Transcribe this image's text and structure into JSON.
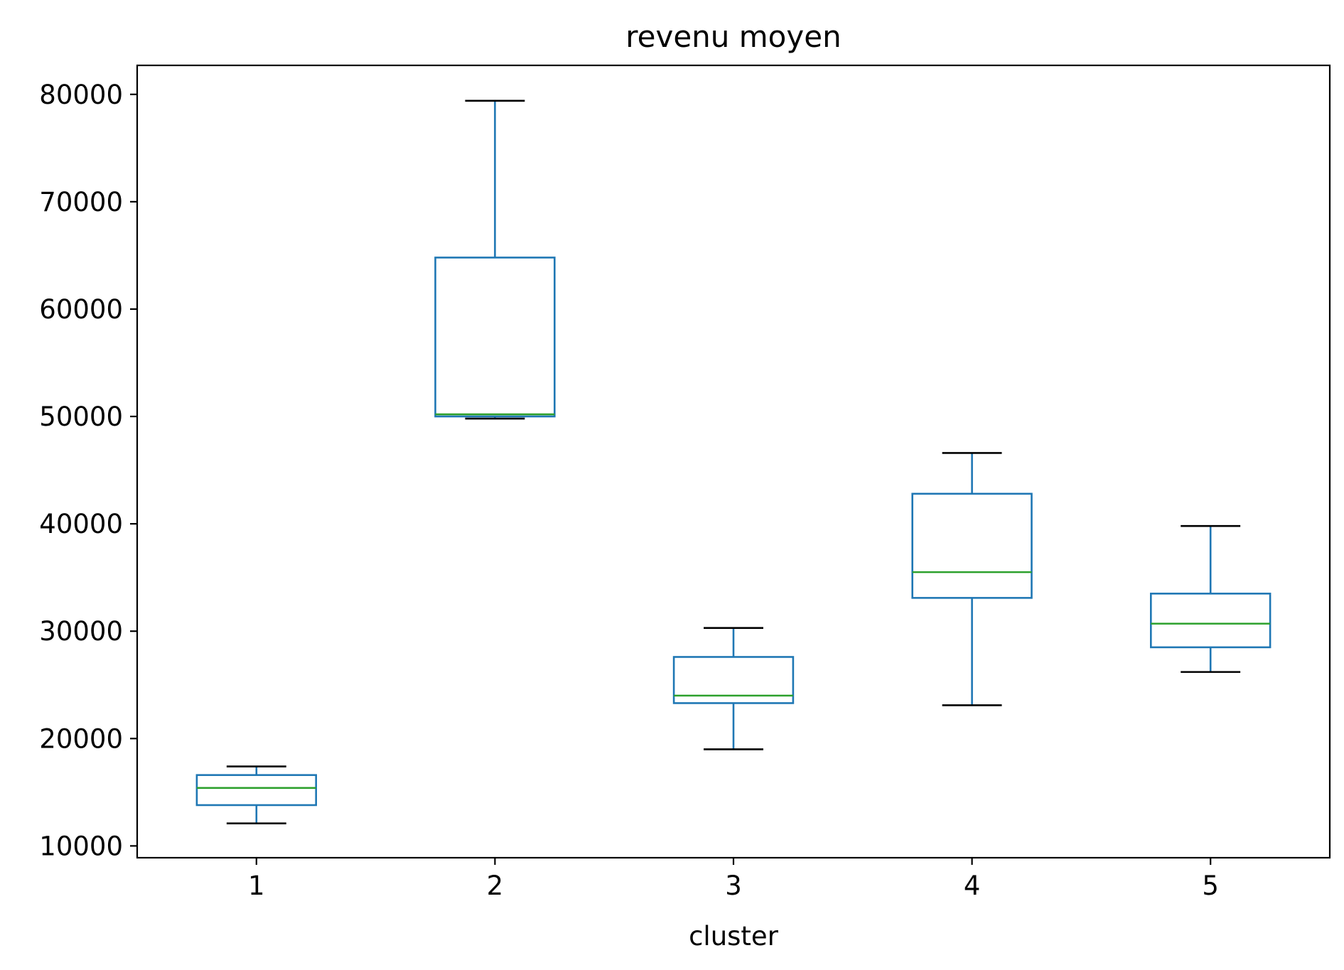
{
  "chart_data": {
    "type": "boxplot",
    "title": "revenu moyen",
    "xlabel": "cluster",
    "ylabel": "",
    "categories": [
      "1",
      "2",
      "3",
      "4",
      "5"
    ],
    "boxes": [
      {
        "category": "1",
        "whisker_low": 12100,
        "q1": 13800,
        "median": 15400,
        "q3": 16600,
        "whisker_high": 17400
      },
      {
        "category": "2",
        "whisker_low": 49800,
        "q1": 50000,
        "median": 50200,
        "q3": 64800,
        "whisker_high": 79400
      },
      {
        "category": "3",
        "whisker_low": 19000,
        "q1": 23300,
        "median": 24000,
        "q3": 27600,
        "whisker_high": 30300
      },
      {
        "category": "4",
        "whisker_low": 23100,
        "q1": 33100,
        "median": 35500,
        "q3": 42800,
        "whisker_high": 46600
      },
      {
        "category": "5",
        "whisker_low": 26200,
        "q1": 28500,
        "median": 30700,
        "q3": 33500,
        "whisker_high": 39800
      }
    ],
    "ylim": [
      8900,
      82700
    ],
    "yticks": [
      10000,
      20000,
      30000,
      40000,
      50000,
      60000,
      70000,
      80000
    ],
    "grid": false,
    "colors": {
      "box": "#1f77b4",
      "median": "#2ca02c",
      "cap": "#000000",
      "axes": "#000000"
    }
  }
}
